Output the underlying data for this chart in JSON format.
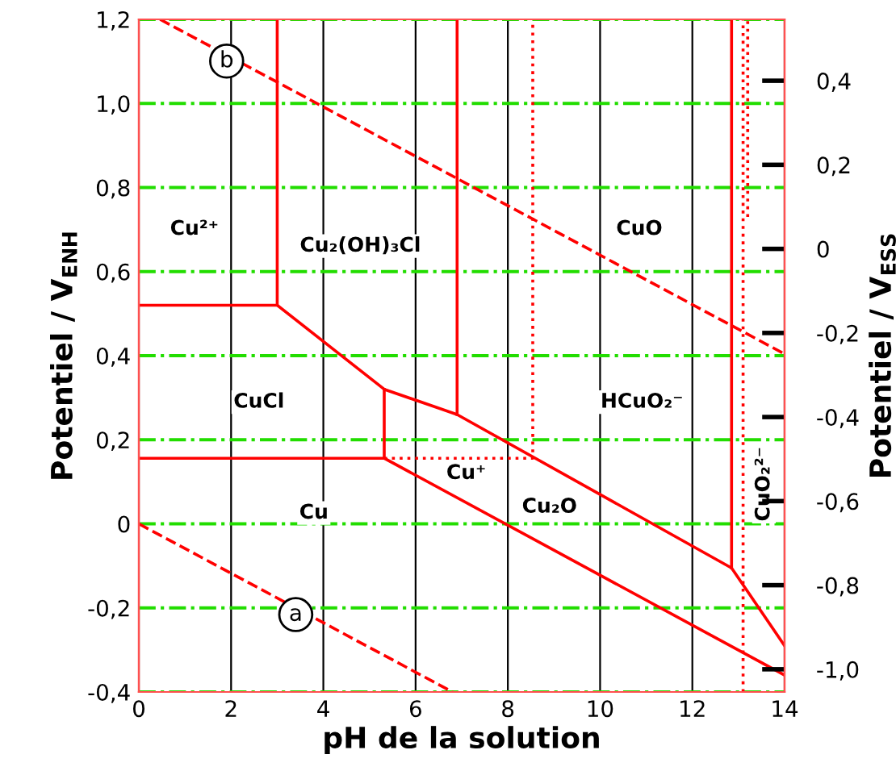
{
  "chart_data": {
    "type": "line",
    "xlabel": "pH de la solution",
    "ylabel": "Potentiel / V$_{ENH}$",
    "y2label": "Potentiel / V$_{ESS}$",
    "xlim": [
      0,
      14
    ],
    "xticks": [
      0,
      2,
      4,
      6,
      8,
      10,
      12,
      14
    ],
    "ylim": [
      -0.4,
      1.2
    ],
    "yticks": [
      {
        "value": -0.4,
        "label": "-0,4"
      },
      {
        "value": -0.2,
        "label": "-0,2"
      },
      0,
      {
        "value": 0.2,
        "label": "0,2"
      },
      {
        "value": 0.4,
        "label": "0,4"
      },
      {
        "value": 0.6,
        "label": "0,6"
      },
      {
        "value": 0.8,
        "label": "0,8"
      },
      {
        "value": 1.0,
        "label": "1,0"
      },
      {
        "value": 1.2,
        "label": "1,2"
      }
    ],
    "y2lim": [
      -1.054,
      0.546
    ],
    "y2ticks": [
      {
        "value": -1.0,
        "label": "-1,0"
      },
      {
        "value": -0.8,
        "label": "-0,8"
      },
      {
        "value": -0.6,
        "label": "-0,6"
      },
      {
        "value": -0.4,
        "label": "-0,4"
      },
      {
        "value": -0.2,
        "label": "-0,2"
      },
      0,
      {
        "value": 0.2,
        "label": "0,2"
      },
      {
        "value": 0.4,
        "label": "0,4"
      }
    ],
    "grid": true,
    "series": [
      {
        "color": "#ff0000",
        "line_style": "dashed",
        "x": [
          0.46,
          14
        ],
        "values": [
          1.2,
          0.404
        ]
      },
      {
        "color": "#ff0000",
        "line_style": "dashed",
        "x": [
          0,
          6.8
        ],
        "values": [
          0,
          -0.4
        ]
      },
      {
        "color": "#ff0000",
        "line_style": "solid",
        "x": [
          0,
          3,
          3
        ],
        "values": [
          0.52,
          0.52,
          1.2
        ]
      },
      {
        "color": "#ff0000",
        "line_style": "solid",
        "x": [
          3,
          5.32,
          6.9,
          12.85,
          14
        ],
        "values": [
          0.52,
          0.32,
          0.26,
          -0.105,
          -0.29
        ]
      },
      {
        "color": "#ff0000",
        "line_style": "solid",
        "x": [
          6.9,
          6.9
        ],
        "values": [
          0.26,
          1.2
        ]
      },
      {
        "color": "#ff0000",
        "line_style": "solid",
        "x": [
          0,
          5.32,
          5.32
        ],
        "values": [
          0.156,
          0.156,
          0.32
        ]
      },
      {
        "color": "#ff0000",
        "line_style": "solid",
        "x": [
          5.32,
          14
        ],
        "values": [
          0.156,
          -0.36
        ]
      },
      {
        "color": "#ff0000",
        "line_style": "dotted",
        "x": [
          5.32,
          8.54,
          8.54
        ],
        "values": [
          0.156,
          0.156,
          1.2
        ]
      },
      {
        "color": "#ff0000",
        "line_style": "solid",
        "x": [
          12.85,
          12.85
        ],
        "values": [
          -0.105,
          1.2
        ]
      },
      {
        "color": "#ff0000",
        "line_style": "dotted",
        "x": [
          13.1,
          13.1
        ],
        "values": [
          -0.4,
          1.2
        ]
      },
      {
        "color": "#ff0000",
        "line_style": "dotted",
        "x": [
          13.2,
          13.2
        ],
        "values": [
          0.73,
          1.2
        ]
      }
    ],
    "annotations": [
      "Cu²⁺",
      "Cu₂(OH)₃Cl",
      "CuO",
      "CuCl",
      "HCuO₂⁻",
      "Cu⁺",
      "Cu₂O",
      "Cu",
      "CuO₂²⁻",
      "a",
      "b"
    ]
  }
}
